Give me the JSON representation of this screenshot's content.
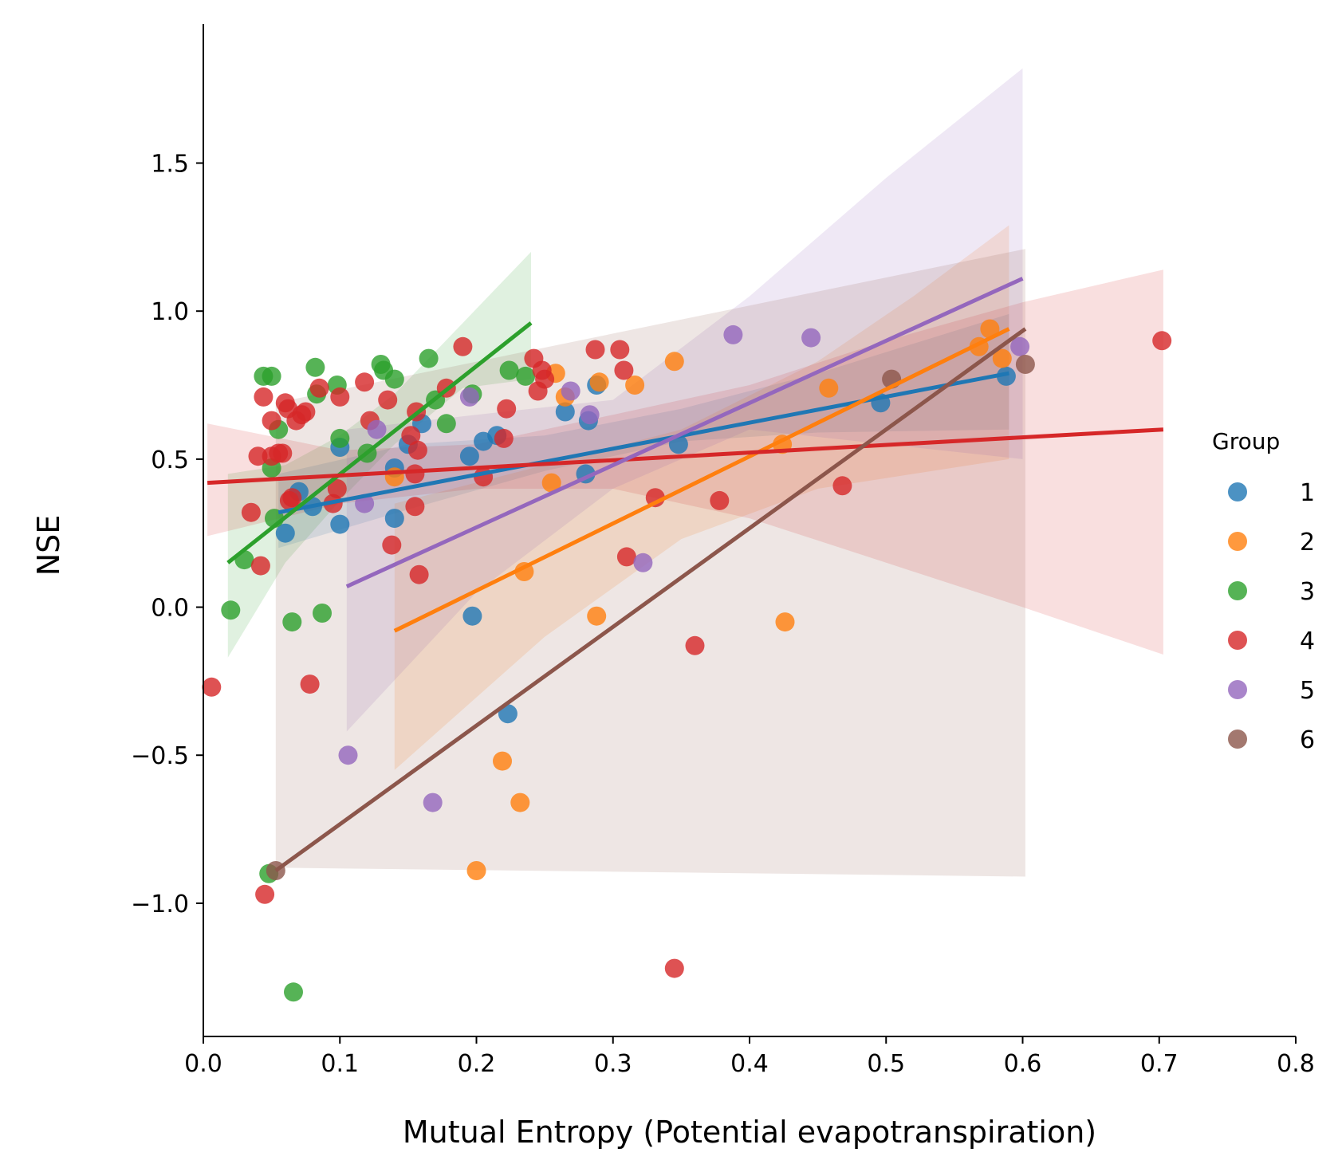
{
  "chart_data": {
    "type": "scatter",
    "xlabel": "Mutual Entropy (Potential evapotranspiration)",
    "ylabel": "NSE",
    "xlim": [
      0.0,
      0.8
    ],
    "ylim": [
      -1.45,
      1.97
    ],
    "xticks": [
      0.0,
      0.1,
      0.2,
      0.3,
      0.4,
      0.5,
      0.6,
      0.7,
      0.8
    ],
    "xtick_labels": [
      "0.0",
      "0.1",
      "0.2",
      "0.3",
      "0.4",
      "0.5",
      "0.6",
      "0.7",
      "0.8"
    ],
    "yticks": [
      -1.0,
      -0.5,
      0.0,
      0.5,
      1.0,
      1.5
    ],
    "ytick_labels": [
      "−1.0",
      "−0.5",
      "0.0",
      "0.5",
      "1.0",
      "1.5"
    ],
    "grid": false,
    "legend": {
      "title": "Group",
      "placement": "right"
    },
    "series": [
      {
        "name": "1",
        "color": "#1f77b4",
        "points": [
          [
            0.06,
            0.25
          ],
          [
            0.07,
            0.39
          ],
          [
            0.08,
            0.34
          ],
          [
            0.1,
            0.28
          ],
          [
            0.1,
            0.54
          ],
          [
            0.14,
            0.47
          ],
          [
            0.14,
            0.3
          ],
          [
            0.15,
            0.55
          ],
          [
            0.16,
            0.62
          ],
          [
            0.195,
            0.51
          ],
          [
            0.205,
            0.56
          ],
          [
            0.215,
            0.58
          ],
          [
            0.197,
            -0.03
          ],
          [
            0.223,
            -0.36
          ],
          [
            0.265,
            0.66
          ],
          [
            0.28,
            0.45
          ],
          [
            0.282,
            0.63
          ],
          [
            0.288,
            0.75
          ],
          [
            0.348,
            0.55
          ],
          [
            0.496,
            0.69
          ],
          [
            0.588,
            0.78
          ]
        ],
        "fit": [
          [
            0.055,
            0.32
          ],
          [
            0.59,
            0.79
          ]
        ],
        "ci": [
          [
            0.055,
            0.2,
            0.45
          ],
          [
            0.15,
            0.33,
            0.55
          ],
          [
            0.25,
            0.46,
            0.58
          ],
          [
            0.35,
            0.56,
            0.67
          ],
          [
            0.45,
            0.59,
            0.79
          ],
          [
            0.59,
            0.6,
            0.99
          ]
        ]
      },
      {
        "name": "2",
        "color": "#ff7f0e",
        "points": [
          [
            0.14,
            0.44
          ],
          [
            0.2,
            -0.89
          ],
          [
            0.219,
            -0.52
          ],
          [
            0.232,
            -0.66
          ],
          [
            0.235,
            0.12
          ],
          [
            0.255,
            0.42
          ],
          [
            0.258,
            0.79
          ],
          [
            0.265,
            0.71
          ],
          [
            0.288,
            -0.03
          ],
          [
            0.29,
            0.76
          ],
          [
            0.316,
            0.75
          ],
          [
            0.345,
            0.83
          ],
          [
            0.424,
            0.55
          ],
          [
            0.426,
            -0.05
          ],
          [
            0.458,
            0.74
          ],
          [
            0.568,
            0.88
          ],
          [
            0.576,
            0.94
          ],
          [
            0.585,
            0.84
          ]
        ],
        "fit": [
          [
            0.14,
            -0.08
          ],
          [
            0.59,
            0.94
          ]
        ],
        "ci": [
          [
            0.14,
            -0.55,
            0.35
          ],
          [
            0.25,
            -0.1,
            0.48
          ],
          [
            0.35,
            0.23,
            0.6
          ],
          [
            0.45,
            0.4,
            0.83
          ],
          [
            0.52,
            0.45,
            1.05
          ],
          [
            0.59,
            0.5,
            1.29
          ]
        ]
      },
      {
        "name": "3",
        "color": "#2ca02c",
        "points": [
          [
            0.02,
            -0.01
          ],
          [
            0.03,
            0.16
          ],
          [
            0.044,
            0.78
          ],
          [
            0.05,
            0.78
          ],
          [
            0.05,
            0.47
          ],
          [
            0.052,
            0.3
          ],
          [
            0.055,
            0.6
          ],
          [
            0.048,
            -0.9
          ],
          [
            0.065,
            -0.05
          ],
          [
            0.066,
            -1.3
          ],
          [
            0.082,
            0.81
          ],
          [
            0.083,
            0.72
          ],
          [
            0.087,
            -0.02
          ],
          [
            0.098,
            0.75
          ],
          [
            0.1,
            0.57
          ],
          [
            0.12,
            0.52
          ],
          [
            0.13,
            0.82
          ],
          [
            0.132,
            0.8
          ],
          [
            0.14,
            0.77
          ],
          [
            0.165,
            0.84
          ],
          [
            0.17,
            0.7
          ],
          [
            0.178,
            0.62
          ],
          [
            0.197,
            0.72
          ],
          [
            0.224,
            0.8
          ],
          [
            0.236,
            0.78
          ]
        ],
        "fit": [
          [
            0.018,
            0.15
          ],
          [
            0.24,
            0.96
          ]
        ],
        "ci": [
          [
            0.018,
            -0.17,
            0.45
          ],
          [
            0.06,
            0.15,
            0.48
          ],
          [
            0.1,
            0.36,
            0.58
          ],
          [
            0.14,
            0.55,
            0.72
          ],
          [
            0.19,
            0.74,
            0.96
          ],
          [
            0.24,
            0.77,
            1.2
          ]
        ]
      },
      {
        "name": "4",
        "color": "#d62728",
        "points": [
          [
            0.006,
            -0.27
          ],
          [
            0.035,
            0.32
          ],
          [
            0.04,
            0.51
          ],
          [
            0.042,
            0.14
          ],
          [
            0.044,
            0.71
          ],
          [
            0.045,
            -0.97
          ],
          [
            0.05,
            0.63
          ],
          [
            0.05,
            0.51
          ],
          [
            0.055,
            0.52
          ],
          [
            0.058,
            0.52
          ],
          [
            0.06,
            0.69
          ],
          [
            0.062,
            0.67
          ],
          [
            0.063,
            0.36
          ],
          [
            0.065,
            0.37
          ],
          [
            0.068,
            0.63
          ],
          [
            0.072,
            0.65
          ],
          [
            0.075,
            0.66
          ],
          [
            0.078,
            -0.26
          ],
          [
            0.085,
            0.74
          ],
          [
            0.095,
            0.35
          ],
          [
            0.098,
            0.4
          ],
          [
            0.1,
            0.71
          ],
          [
            0.118,
            0.76
          ],
          [
            0.122,
            0.63
          ],
          [
            0.135,
            0.7
          ],
          [
            0.138,
            0.21
          ],
          [
            0.152,
            0.58
          ],
          [
            0.155,
            0.45
          ],
          [
            0.155,
            0.34
          ],
          [
            0.156,
            0.66
          ],
          [
            0.157,
            0.53
          ],
          [
            0.158,
            0.11
          ],
          [
            0.178,
            0.74
          ],
          [
            0.19,
            0.88
          ],
          [
            0.205,
            0.44
          ],
          [
            0.22,
            0.57
          ],
          [
            0.222,
            0.67
          ],
          [
            0.242,
            0.84
          ],
          [
            0.245,
            0.73
          ],
          [
            0.248,
            0.8
          ],
          [
            0.25,
            0.77
          ],
          [
            0.287,
            0.87
          ],
          [
            0.305,
            0.87
          ],
          [
            0.308,
            0.8
          ],
          [
            0.31,
            0.17
          ],
          [
            0.331,
            0.37
          ],
          [
            0.345,
            -1.22
          ],
          [
            0.36,
            -0.13
          ],
          [
            0.378,
            0.36
          ],
          [
            0.468,
            0.41
          ],
          [
            0.702,
            0.9
          ]
        ],
        "fit": [
          [
            0.003,
            0.42
          ],
          [
            0.703,
            0.6
          ]
        ],
        "ci": [
          [
            0.003,
            0.24,
            0.62
          ],
          [
            0.1,
            0.35,
            0.53
          ],
          [
            0.2,
            0.4,
            0.55
          ],
          [
            0.3,
            0.4,
            0.65
          ],
          [
            0.4,
            0.3,
            0.75
          ],
          [
            0.5,
            0.15,
            0.9
          ],
          [
            0.6,
            0.0,
            1.03
          ],
          [
            0.703,
            -0.16,
            1.14
          ]
        ]
      },
      {
        "name": "5",
        "color": "#9467bd",
        "points": [
          [
            0.106,
            -0.5
          ],
          [
            0.118,
            0.35
          ],
          [
            0.127,
            0.6
          ],
          [
            0.168,
            -0.66
          ],
          [
            0.195,
            0.71
          ],
          [
            0.269,
            0.73
          ],
          [
            0.283,
            0.65
          ],
          [
            0.322,
            0.15
          ],
          [
            0.388,
            0.92
          ],
          [
            0.445,
            0.91
          ],
          [
            0.598,
            0.88
          ]
        ],
        "fit": [
          [
            0.105,
            0.07
          ],
          [
            0.6,
            1.11
          ]
        ],
        "ci": [
          [
            0.105,
            -0.42,
            0.6
          ],
          [
            0.2,
            0.05,
            0.65
          ],
          [
            0.3,
            0.4,
            0.7
          ],
          [
            0.4,
            0.6,
            1.05
          ],
          [
            0.5,
            0.55,
            1.45
          ],
          [
            0.6,
            0.5,
            1.82
          ]
        ]
      },
      {
        "name": "6",
        "color": "#8c564b",
        "points": [
          [
            0.053,
            -0.89
          ],
          [
            0.504,
            0.77
          ],
          [
            0.602,
            0.82
          ]
        ],
        "fit": [
          [
            0.053,
            -0.89
          ],
          [
            0.602,
            0.94
          ]
        ],
        "ci": [
          [
            0.053,
            -0.88,
            0.69
          ],
          [
            0.602,
            -0.91,
            1.21
          ]
        ]
      }
    ]
  }
}
